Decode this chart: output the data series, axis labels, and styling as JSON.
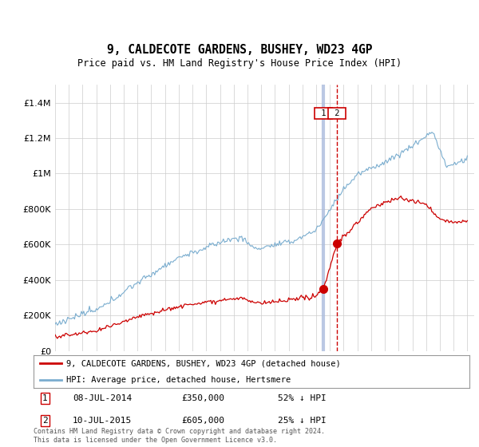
{
  "title": "9, CALDECOTE GARDENS, BUSHEY, WD23 4GP",
  "subtitle": "Price paid vs. HM Land Registry's House Price Index (HPI)",
  "legend_line1": "9, CALDECOTE GARDENS, BUSHEY, WD23 4GP (detached house)",
  "legend_line2": "HPI: Average price, detached house, Hertsmere",
  "transaction1_date": "08-JUL-2014",
  "transaction1_price": 350000,
  "transaction1_hpi_pct": "52% ↓ HPI",
  "transaction1_year": 2014.52,
  "transaction2_date": "10-JUL-2015",
  "transaction2_price": 605000,
  "transaction2_hpi_pct": "25% ↓ HPI",
  "transaction2_year": 2015.52,
  "footer": "Contains HM Land Registry data © Crown copyright and database right 2024.\nThis data is licensed under the Open Government Licence v3.0.",
  "red_color": "#cc0000",
  "blue_color": "#7aadcf",
  "vline1_color": "#aabbdd",
  "vline2_color": "#cc0000",
  "background_color": "#ffffff",
  "grid_color": "#cccccc",
  "ylim_max": 1500000,
  "xlim_start": 1995,
  "xlim_end": 2025.5
}
